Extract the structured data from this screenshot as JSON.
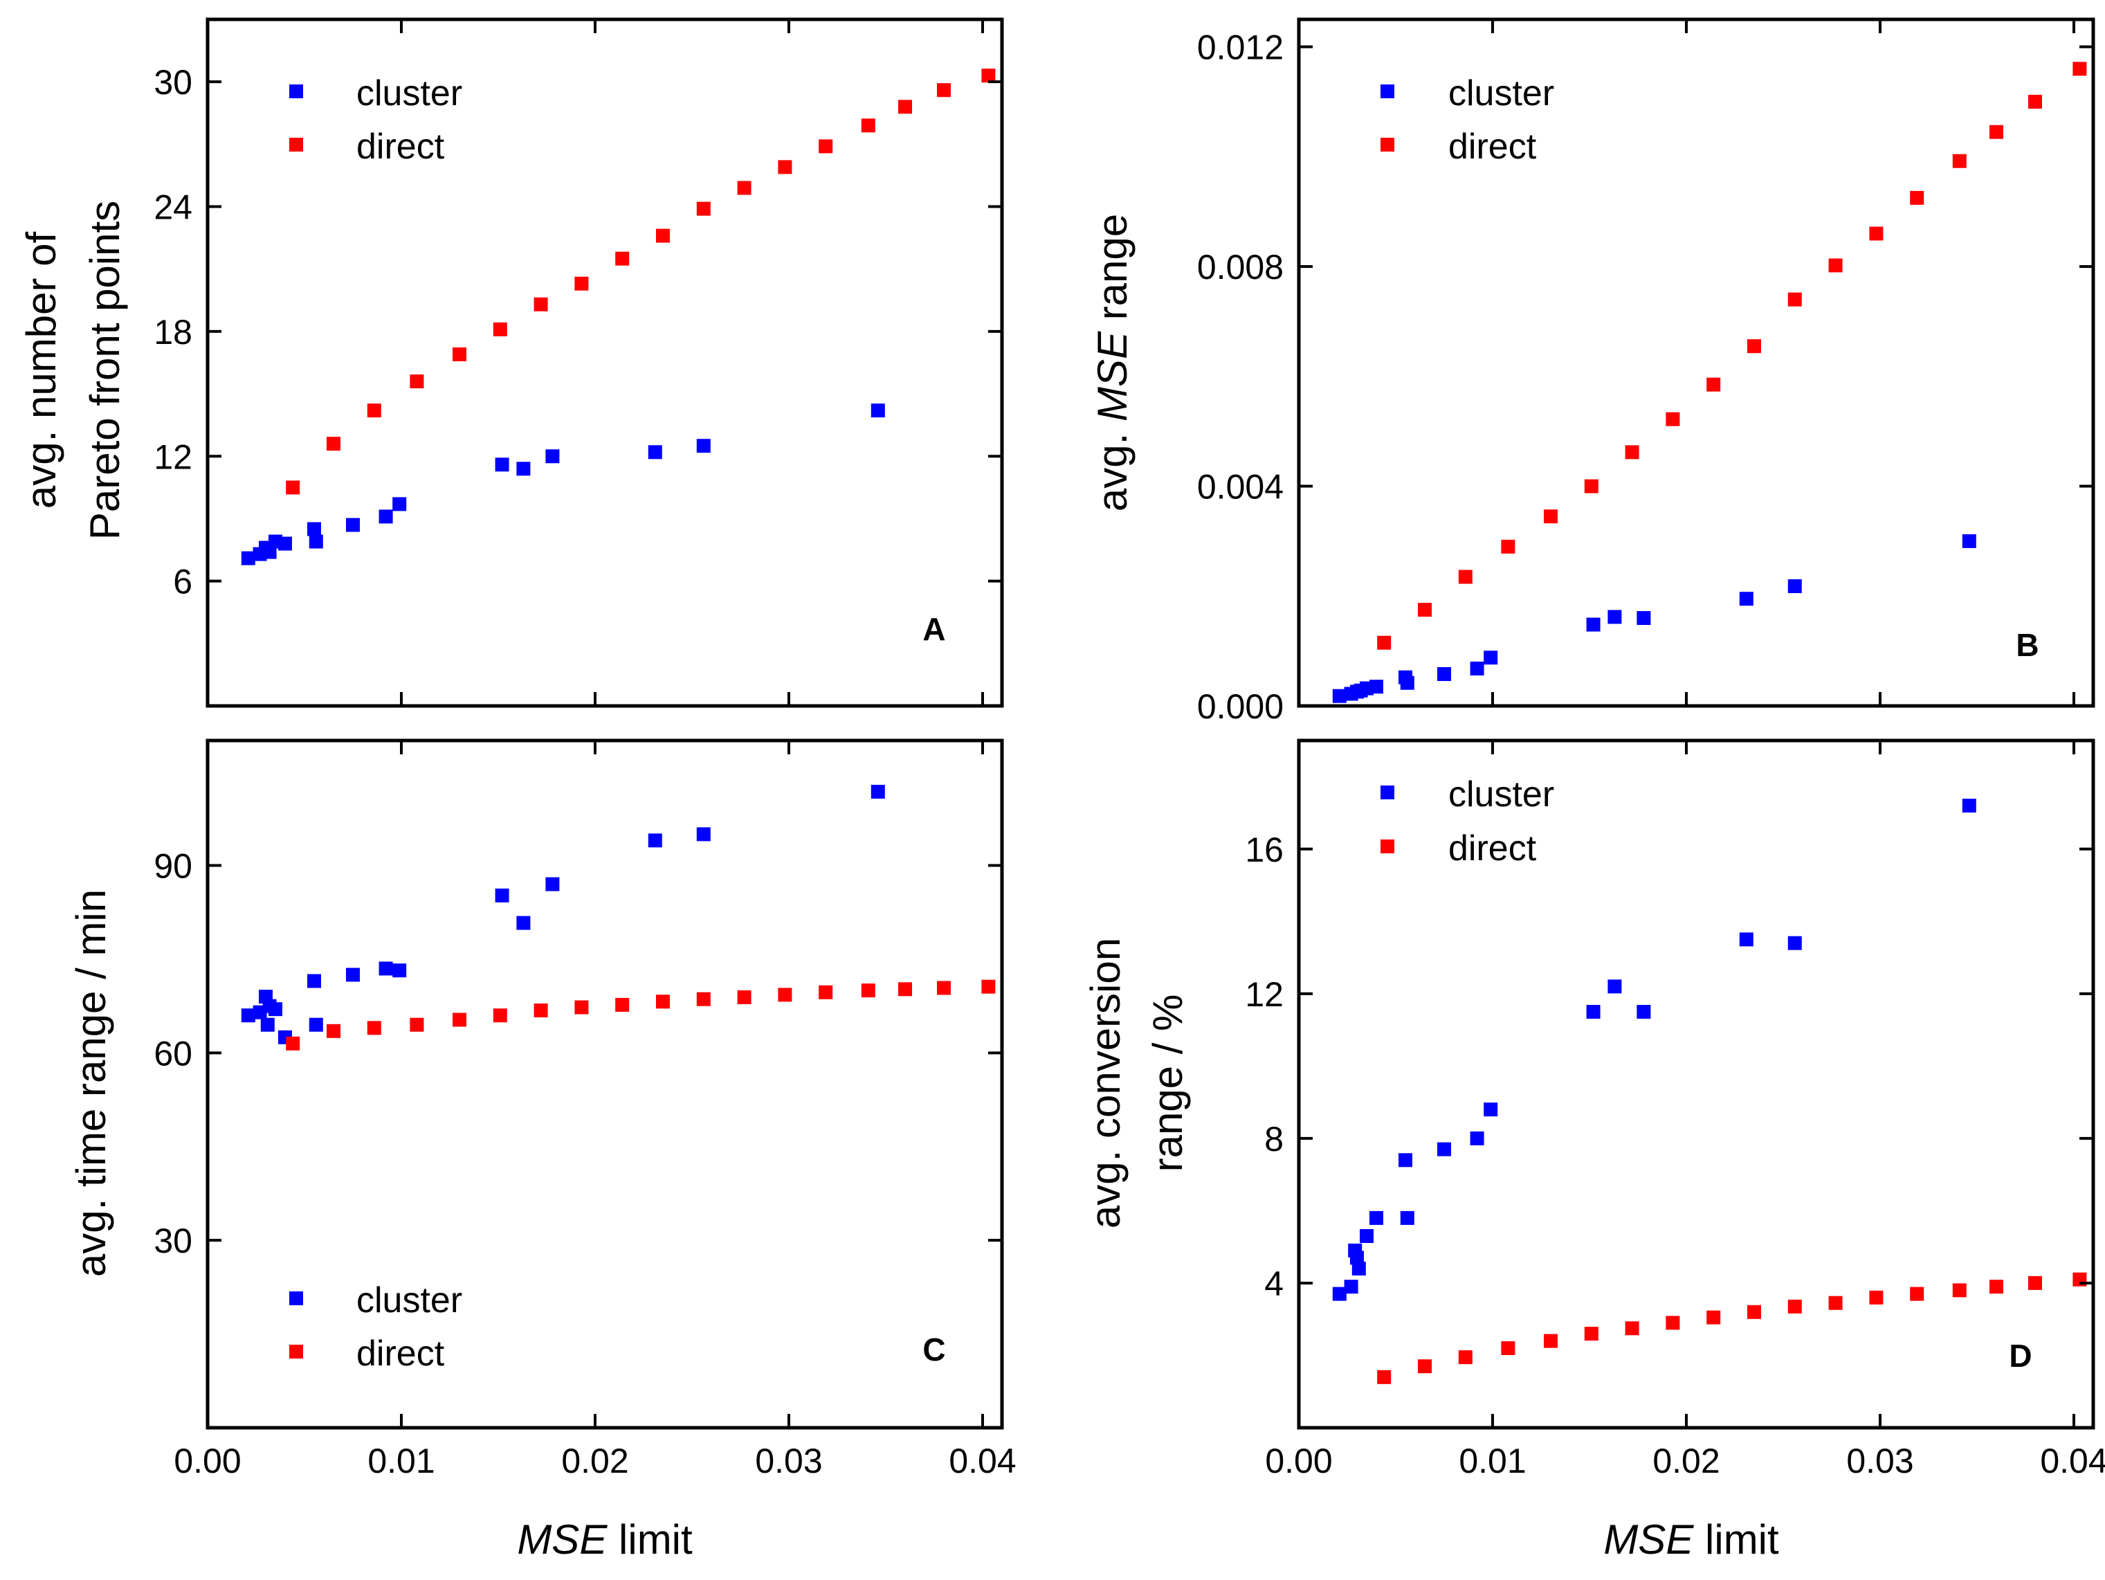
{
  "chart_data": [
    {
      "panel": "A",
      "type": "scatter",
      "xlabel_italic": "MSE",
      "xlabel_rest": " limit",
      "ylabel_lines": [
        "avg. number of",
        "Pareto front points"
      ],
      "xlim": [
        0,
        0.041
      ],
      "ylim": [
        0,
        33
      ],
      "xticks": [
        0.0,
        0.01,
        0.02,
        0.03,
        0.04
      ],
      "xtick_labels": [
        "0.00",
        "0.01",
        "0.02",
        "0.03",
        "0.04"
      ],
      "yticks": [
        6,
        12,
        18,
        24,
        30
      ],
      "ytick_labels": [
        "6",
        "12",
        "18",
        "24",
        "30"
      ],
      "legend_position": "top-left",
      "series": [
        {
          "name": "cluster",
          "color": "#0000ff",
          "x": [
            0.0021,
            0.0027,
            0.003,
            0.0032,
            0.0035,
            0.004,
            0.0055,
            0.0056,
            0.0075,
            0.0092,
            0.0099,
            0.0152,
            0.0163,
            0.0178,
            0.0231,
            0.0256,
            0.0346
          ],
          "y": [
            7.1,
            7.3,
            7.6,
            7.4,
            7.9,
            7.8,
            8.5,
            7.9,
            8.7,
            9.1,
            9.7,
            11.6,
            11.4,
            12.0,
            12.2,
            12.5,
            14.2
          ]
        },
        {
          "name": "direct",
          "color": "#ff0000",
          "x": [
            0.0044,
            0.0065,
            0.0086,
            0.0108,
            0.013,
            0.0151,
            0.0172,
            0.0193,
            0.0214,
            0.0235,
            0.0256,
            0.0277,
            0.0298,
            0.0319,
            0.0341,
            0.036,
            0.038,
            0.0403
          ],
          "y": [
            10.5,
            12.6,
            14.2,
            15.6,
            16.9,
            18.1,
            19.3,
            20.3,
            21.5,
            22.6,
            23.9,
            24.9,
            25.9,
            26.9,
            27.9,
            28.8,
            29.6,
            30.3
          ]
        }
      ]
    },
    {
      "panel": "B",
      "type": "scatter",
      "ylabel_prefix": "avg. ",
      "ylabel_italic": "MSE",
      "ylabel_suffix": " range",
      "xlim": [
        0,
        0.041
      ],
      "ylim": [
        0,
        0.0125
      ],
      "xticks": [
        0.0,
        0.01,
        0.02,
        0.03,
        0.04
      ],
      "yticks": [
        0.0,
        0.004,
        0.008,
        0.012
      ],
      "ytick_labels": [
        "0.000",
        "0.004",
        "0.008",
        "0.012"
      ],
      "legend_position": "top-left",
      "series": [
        {
          "name": "cluster",
          "color": "#0000ff",
          "x": [
            0.0021,
            0.0027,
            0.003,
            0.0032,
            0.0035,
            0.004,
            0.0055,
            0.0056,
            0.0075,
            0.0092,
            0.0099,
            0.0152,
            0.0163,
            0.0178,
            0.0231,
            0.0256,
            0.0346
          ],
          "y": [
            0.00018,
            0.00022,
            0.00026,
            0.00028,
            0.00032,
            0.00035,
            0.00052,
            0.00042,
            0.00058,
            0.00068,
            0.00088,
            0.00148,
            0.00162,
            0.0016,
            0.00195,
            0.00218,
            0.003
          ]
        },
        {
          "name": "direct",
          "color": "#ff0000",
          "x": [
            0.0044,
            0.0065,
            0.0086,
            0.0108,
            0.013,
            0.0151,
            0.0172,
            0.0193,
            0.0214,
            0.0235,
            0.0256,
            0.0277,
            0.0298,
            0.0319,
            0.0341,
            0.036,
            0.038,
            0.0403
          ],
          "y": [
            0.00115,
            0.00175,
            0.00235,
            0.0029,
            0.00345,
            0.004,
            0.00462,
            0.00522,
            0.00585,
            0.00655,
            0.0074,
            0.00802,
            0.0086,
            0.00925,
            0.00992,
            0.01045,
            0.011,
            0.0116
          ]
        }
      ]
    },
    {
      "panel": "C",
      "type": "scatter",
      "ylabel": "avg. time range /  min",
      "xlim": [
        0,
        0.041
      ],
      "ylim": [
        0,
        110
      ],
      "xticks": [
        0.0,
        0.01,
        0.02,
        0.03,
        0.04
      ],
      "xtick_labels": [
        "0.00",
        "0.01",
        "0.02",
        "0.03",
        "0.04"
      ],
      "yticks": [
        30,
        60,
        90
      ],
      "ytick_labels": [
        "30",
        "60",
        "90"
      ],
      "legend_position": "bottom-left",
      "series": [
        {
          "name": "cluster",
          "color": "#0000ff",
          "x": [
            0.0021,
            0.0027,
            0.003,
            0.0031,
            0.0032,
            0.0035,
            0.004,
            0.0055,
            0.0056,
            0.0075,
            0.0092,
            0.0099,
            0.0152,
            0.0163,
            0.0178,
            0.0231,
            0.0256,
            0.0346
          ],
          "y": [
            66.0,
            66.5,
            69.0,
            64.5,
            67.5,
            67.0,
            62.5,
            71.5,
            64.5,
            72.5,
            73.5,
            73.2,
            85.2,
            80.8,
            87.0,
            94.0,
            95.0,
            101.8
          ]
        },
        {
          "name": "direct",
          "color": "#ff0000",
          "x": [
            0.0044,
            0.0065,
            0.0086,
            0.0108,
            0.013,
            0.0151,
            0.0172,
            0.0193,
            0.0214,
            0.0235,
            0.0256,
            0.0277,
            0.0298,
            0.0319,
            0.0341,
            0.036,
            0.038,
            0.0403
          ],
          "y": [
            61.5,
            63.5,
            64.0,
            64.5,
            65.3,
            66.0,
            66.8,
            67.3,
            67.7,
            68.2,
            68.6,
            68.9,
            69.3,
            69.7,
            70.0,
            70.2,
            70.4,
            70.6
          ]
        }
      ]
    },
    {
      "panel": "D",
      "type": "scatter",
      "xlabel_italic": "MSE",
      "xlabel_rest": " limit",
      "ylabel_lines": [
        "avg. conversion",
        "range / %"
      ],
      "xlim": [
        0,
        0.041
      ],
      "ylim": [
        0,
        19
      ],
      "xticks": [
        0.0,
        0.01,
        0.02,
        0.03,
        0.04
      ],
      "xtick_labels": [
        "0.00",
        "0.01",
        "0.02",
        "0.03",
        "0.04"
      ],
      "yticks": [
        4,
        8,
        12,
        16
      ],
      "ytick_labels": [
        "4",
        "8",
        "12",
        "16"
      ],
      "legend_position": "top-left",
      "series": [
        {
          "name": "cluster",
          "color": "#0000ff",
          "x": [
            0.0021,
            0.0027,
            0.0029,
            0.003,
            0.0031,
            0.0035,
            0.004,
            0.0055,
            0.0056,
            0.0075,
            0.0092,
            0.0099,
            0.0152,
            0.0163,
            0.0178,
            0.0231,
            0.0256,
            0.0346
          ],
          "y": [
            3.7,
            3.9,
            4.9,
            4.7,
            4.4,
            5.3,
            5.8,
            7.4,
            5.8,
            7.7,
            8.0,
            8.8,
            11.5,
            12.2,
            11.5,
            13.5,
            13.4,
            17.2
          ]
        },
        {
          "name": "direct",
          "color": "#ff0000",
          "x": [
            0.0044,
            0.0065,
            0.0086,
            0.0108,
            0.013,
            0.0151,
            0.0172,
            0.0193,
            0.0214,
            0.0235,
            0.0256,
            0.0277,
            0.0298,
            0.0319,
            0.0341,
            0.036,
            0.038,
            0.0403
          ],
          "y": [
            1.4,
            1.7,
            1.95,
            2.2,
            2.4,
            2.6,
            2.75,
            2.9,
            3.05,
            3.2,
            3.35,
            3.45,
            3.6,
            3.7,
            3.8,
            3.9,
            4.0,
            4.1
          ]
        }
      ]
    }
  ]
}
